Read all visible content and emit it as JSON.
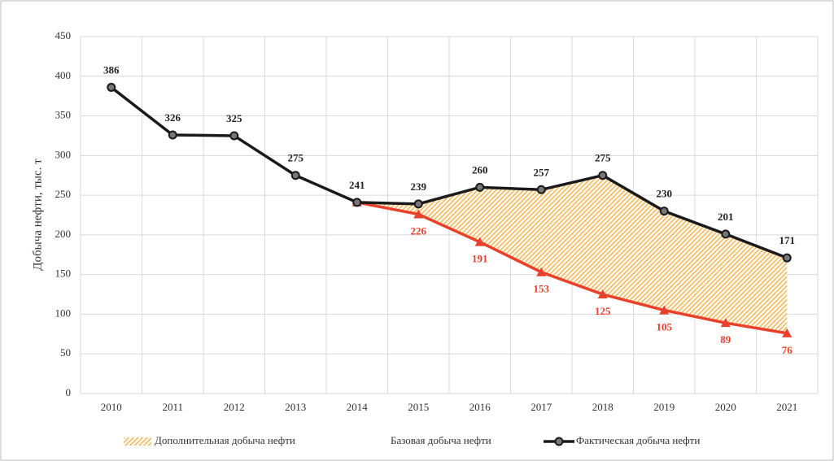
{
  "chart_data": {
    "type": "line",
    "ylabel": "Добыча нефти, тыс. т",
    "categories": [
      "2010",
      "2011",
      "2012",
      "2013",
      "2014",
      "2015",
      "2016",
      "2017",
      "2018",
      "2019",
      "2020",
      "2021"
    ],
    "series": [
      {
        "name": "Базовая добыча нефти",
        "color": "#e8402a",
        "marker": "triangle",
        "values": [
          null,
          null,
          null,
          null,
          241,
          226,
          191,
          153,
          125,
          105,
          89,
          76
        ],
        "value_labels": [
          null,
          null,
          null,
          null,
          null,
          "226",
          "191",
          "153",
          "125",
          "105",
          "89",
          "76"
        ]
      },
      {
        "name": "Фактическая добыча нефти",
        "color": "#1a1a1a",
        "marker": "circle",
        "values": [
          386,
          326,
          325,
          275,
          241,
          239,
          260,
          257,
          275,
          230,
          201,
          171
        ]
      }
    ],
    "fill_between": {
      "name": "Дополнительная добыча нефти",
      "color": "#f0a030"
    },
    "ylim": [
      0,
      450
    ],
    "yticks": [
      0,
      50,
      100,
      150,
      200,
      250,
      300,
      350,
      400,
      450
    ],
    "grid": true
  }
}
